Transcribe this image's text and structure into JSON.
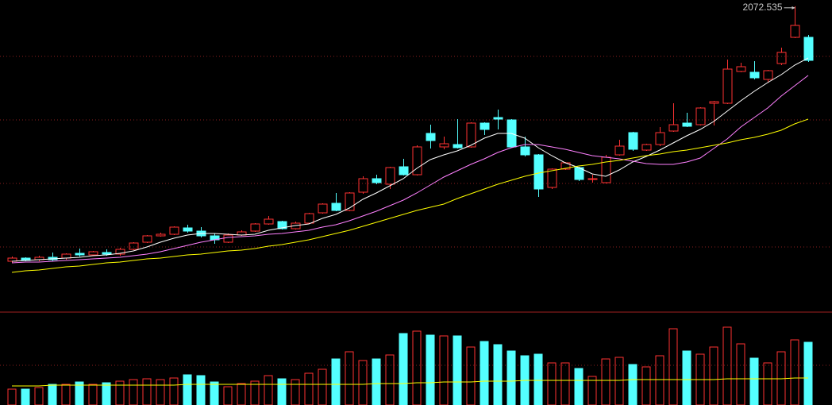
{
  "chart_data": {
    "type": "candlestick",
    "ylim": [
      920,
      2096
    ],
    "up_color": "#ff3232",
    "down_color": "#54ffff",
    "open": [
      1109,
      1121,
      1115,
      1124,
      1121,
      1139,
      1133,
      1142,
      1136,
      1154,
      1181,
      1205,
      1211,
      1235,
      1223,
      1205,
      1181,
      1208,
      1223,
      1250,
      1259,
      1232,
      1253,
      1292,
      1328,
      1301,
      1370,
      1421,
      1400,
      1466,
      1436,
      1592,
      1541,
      1550,
      1541,
      1631,
      1652,
      1643,
      1541,
      1511,
      1388,
      1457,
      1463,
      1418,
      1406,
      1511,
      1595,
      1529,
      1550,
      1601,
      1631,
      1625,
      1706,
      1706,
      1826,
      1823,
      1796,
      1856,
      1955,
      1955
    ],
    "close": [
      1121,
      1112,
      1124,
      1115,
      1136,
      1133,
      1145,
      1136,
      1154,
      1178,
      1205,
      1211,
      1238,
      1223,
      1205,
      1190,
      1208,
      1220,
      1250,
      1268,
      1232,
      1253,
      1289,
      1325,
      1301,
      1367,
      1421,
      1406,
      1463,
      1436,
      1541,
      1565,
      1553,
      1538,
      1631,
      1607,
      1646,
      1541,
      1511,
      1382,
      1457,
      1481,
      1418,
      1421,
      1502,
      1544,
      1532,
      1550,
      1595,
      1625,
      1619,
      1688,
      1712,
      1835,
      1844,
      1802,
      1829,
      1898,
      2000,
      1868
    ],
    "high": [
      1127,
      1124,
      1130,
      1142,
      1139,
      1157,
      1148,
      1154,
      1160,
      1181,
      1208,
      1217,
      1241,
      1247,
      1238,
      1214,
      1214,
      1226,
      1253,
      1280,
      1262,
      1259,
      1292,
      1328,
      1367,
      1370,
      1430,
      1436,
      1466,
      1496,
      1547,
      1625,
      1580,
      1646,
      1634,
      1634,
      1682,
      1646,
      1580,
      1514,
      1460,
      1484,
      1466,
      1436,
      1511,
      1568,
      1598,
      1553,
      1616,
      1706,
      1670,
      1691,
      1715,
      1871,
      1859,
      1865,
      1832,
      1916,
      2072.535,
      1964
    ],
    "low": [
      1103,
      1109,
      1109,
      1109,
      1115,
      1127,
      1130,
      1130,
      1130,
      1151,
      1178,
      1202,
      1208,
      1217,
      1199,
      1175,
      1178,
      1205,
      1220,
      1247,
      1229,
      1229,
      1250,
      1289,
      1298,
      1298,
      1364,
      1400,
      1382,
      1433,
      1433,
      1535,
      1532,
      1535,
      1538,
      1586,
      1607,
      1538,
      1505,
      1352,
      1382,
      1454,
      1412,
      1406,
      1403,
      1508,
      1526,
      1526,
      1544,
      1598,
      1616,
      1622,
      1622,
      1703,
      1823,
      1796,
      1784,
      1850,
      1952,
      1862
    ],
    "series": [
      {
        "color": "#ffffff",
        "values": [
          1109,
          1112,
          1115,
          1118,
          1121,
          1124,
          1130,
          1133,
          1139,
          1148,
          1163,
          1181,
          1196,
          1208,
          1214,
          1214,
          1211,
          1208,
          1211,
          1226,
          1235,
          1244,
          1250,
          1271,
          1286,
          1310,
          1343,
          1367,
          1394,
          1421,
          1460,
          1493,
          1511,
          1526,
          1547,
          1574,
          1592,
          1592,
          1574,
          1538,
          1508,
          1481,
          1463,
          1439,
          1430,
          1454,
          1484,
          1505,
          1529,
          1556,
          1583,
          1607,
          1637,
          1676,
          1715,
          1751,
          1784,
          1814,
          1850,
          1877
        ]
      },
      {
        "color": "#ff80ff",
        "values": [
          1103,
          1106,
          1106,
          1109,
          1112,
          1115,
          1118,
          1121,
          1124,
          1130,
          1136,
          1145,
          1157,
          1169,
          1181,
          1190,
          1199,
          1202,
          1205,
          1211,
          1214,
          1220,
          1226,
          1238,
          1247,
          1262,
          1280,
          1298,
          1319,
          1340,
          1367,
          1397,
          1427,
          1451,
          1475,
          1496,
          1520,
          1538,
          1550,
          1550,
          1541,
          1532,
          1520,
          1508,
          1502,
          1496,
          1487,
          1478,
          1475,
          1475,
          1484,
          1499,
          1535,
          1571,
          1616,
          1652,
          1688,
          1733,
          1772,
          1811
        ]
      },
      {
        "color": "#ffff00",
        "values": [
          1067,
          1073,
          1076,
          1082,
          1088,
          1091,
          1097,
          1103,
          1106,
          1112,
          1118,
          1121,
          1127,
          1133,
          1136,
          1142,
          1148,
          1151,
          1157,
          1166,
          1172,
          1181,
          1190,
          1202,
          1214,
          1226,
          1241,
          1256,
          1271,
          1286,
          1301,
          1313,
          1325,
          1346,
          1364,
          1382,
          1400,
          1415,
          1430,
          1442,
          1451,
          1460,
          1469,
          1475,
          1484,
          1490,
          1499,
          1508,
          1514,
          1523,
          1529,
          1538,
          1547,
          1556,
          1568,
          1577,
          1589,
          1604,
          1628,
          1646
        ]
      }
    ],
    "volume": {
      "ylim": [
        0,
        117
      ],
      "values": [
        20,
        20,
        22,
        26,
        26,
        29,
        26,
        28,
        30,
        32,
        33,
        32,
        34,
        38,
        37,
        29,
        23,
        27,
        30,
        37,
        33,
        32,
        40,
        45,
        58,
        67,
        56,
        58,
        63,
        90,
        93,
        88,
        87,
        87,
        73,
        80,
        76,
        68,
        62,
        64,
        53,
        53,
        46,
        36,
        58,
        60,
        51,
        48,
        62,
        96,
        68,
        64,
        73,
        98,
        77,
        59,
        53,
        67,
        82,
        79
      ],
      "ma": {
        "color": "#ffff00",
        "values": [
          24,
          24,
          24,
          25,
          25,
          25,
          25,
          25,
          25,
          25,
          25,
          25,
          25,
          26,
          26,
          26,
          26,
          26,
          26,
          26,
          26,
          26,
          26,
          26,
          26,
          26,
          26,
          27,
          27,
          27,
          28,
          28,
          29,
          29,
          29,
          30,
          30,
          30,
          31,
          31,
          31,
          31,
          31,
          31,
          31,
          31,
          32,
          32,
          32,
          32,
          32,
          32,
          32,
          33,
          33,
          33,
          33,
          33,
          34,
          34
        ]
      }
    }
  }
}
